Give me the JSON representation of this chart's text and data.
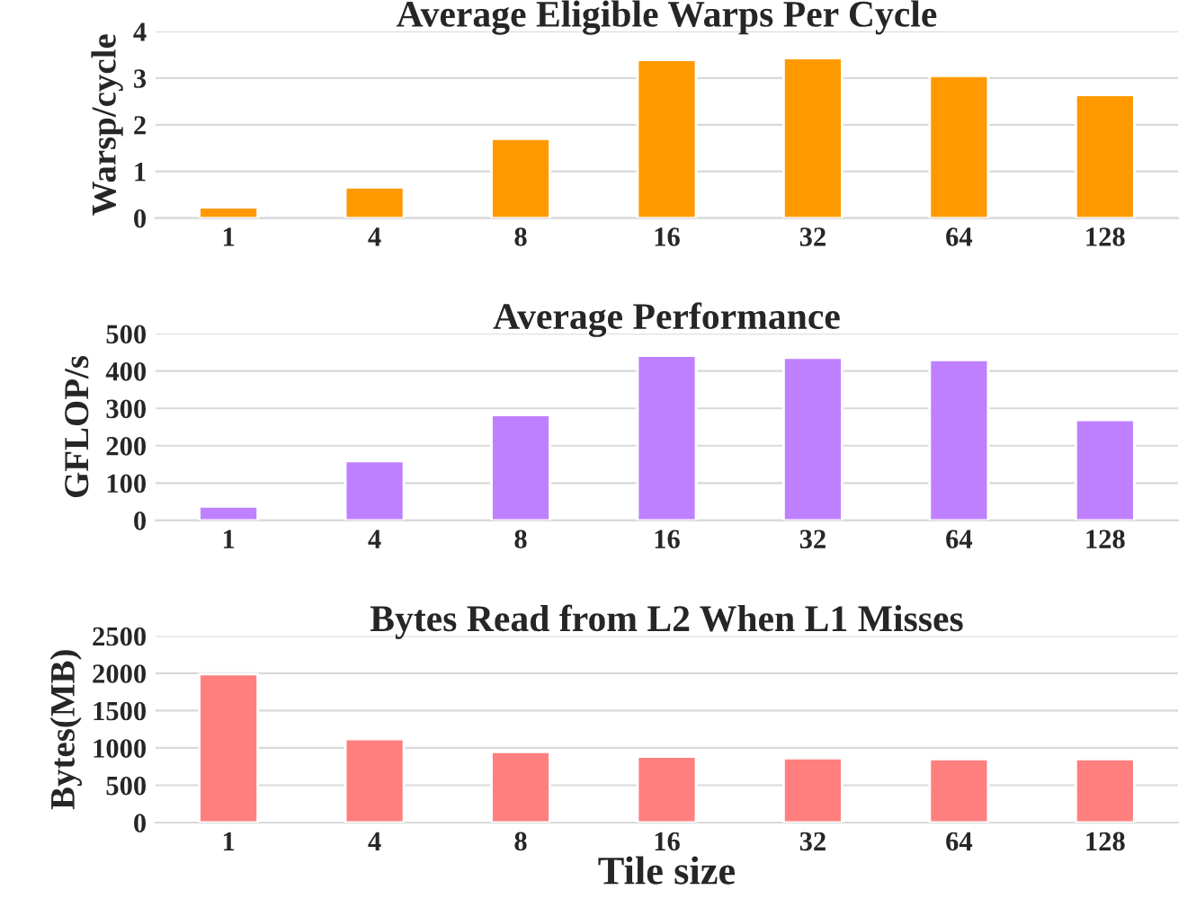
{
  "chart_data": [
    {
      "type": "bar",
      "title": "Average Eligible Warps Per Cycle",
      "ylabel": "Warsp/cycle",
      "categories": [
        "1",
        "4",
        "8",
        "16",
        "32",
        "64",
        "128"
      ],
      "series": [
        {
          "color": "#ff9900",
          "values": [
            0.23,
            0.66,
            1.7,
            3.39,
            3.43,
            3.05,
            2.64
          ]
        }
      ],
      "ylim": [
        0,
        4
      ],
      "yticks": [
        0,
        1,
        2,
        3,
        4
      ],
      "grid": "y"
    },
    {
      "type": "bar",
      "title": "Average Performance",
      "ylabel": "GFLOP/s",
      "categories": [
        "1",
        "4",
        "8",
        "16",
        "32",
        "64",
        "128"
      ],
      "series": [
        {
          "color": "#bf80ff",
          "values": [
            37,
            159,
            282,
            441,
            436,
            430,
            269
          ]
        }
      ],
      "ylim": [
        0,
        500
      ],
      "yticks": [
        0,
        100,
        200,
        300,
        400,
        500
      ],
      "grid": "y"
    },
    {
      "type": "bar",
      "title": "Bytes Read from L2 When L1 Misses",
      "ylabel": "Bytes(MB)",
      "xlabel": "Tile size",
      "categories": [
        "1",
        "4",
        "8",
        "16",
        "32",
        "64",
        "128"
      ],
      "series": [
        {
          "color": "#ff7f7f",
          "values": [
            1990,
            1120,
            948,
            884,
            862,
            851,
            851
          ]
        }
      ],
      "ylim": [
        0,
        2500
      ],
      "yticks": [
        0,
        500,
        1000,
        1500,
        2000,
        2500
      ],
      "grid": "y"
    }
  ]
}
